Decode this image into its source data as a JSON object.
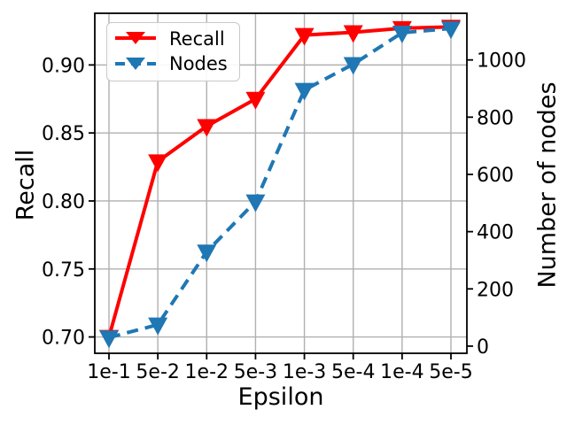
{
  "chart_data": {
    "type": "line",
    "title": "",
    "xlabel": "Epsilon",
    "ylabel_left": "Recall",
    "ylabel_right": "Number of nodes",
    "categories": [
      "1e-1",
      "5e-2",
      "1e-2",
      "5e-3",
      "1e-3",
      "5e-4",
      "1e-4",
      "5e-5"
    ],
    "series": [
      {
        "name": "Recall",
        "axis": "left",
        "color": "#ff0000",
        "linestyle": "solid",
        "marker": "triangle-down",
        "values": [
          0.7,
          0.829,
          0.855,
          0.875,
          0.922,
          0.924,
          0.927,
          0.928
        ]
      },
      {
        "name": "Nodes",
        "axis": "right",
        "color": "#1f77b4",
        "linestyle": "dashed",
        "marker": "triangle-down",
        "values": [
          30,
          75,
          330,
          505,
          895,
          985,
          1095,
          1110
        ]
      }
    ],
    "left_axis": {
      "ticks": [
        0.7,
        0.75,
        0.8,
        0.85,
        0.9
      ],
      "tick_labels": [
        "0.70",
        "0.75",
        "0.80",
        "0.85",
        "0.90"
      ],
      "range": [
        0.688,
        0.938
      ]
    },
    "right_axis": {
      "ticks": [
        0,
        200,
        400,
        600,
        800,
        1000
      ],
      "tick_labels": [
        "0",
        "200",
        "400",
        "600",
        "800",
        "1000"
      ],
      "range": [
        -25,
        1163
      ]
    },
    "grid": true,
    "grid_color": "#b0b0b0",
    "legend": {
      "position": "upper-left",
      "entries": [
        "Recall",
        "Nodes"
      ]
    }
  }
}
